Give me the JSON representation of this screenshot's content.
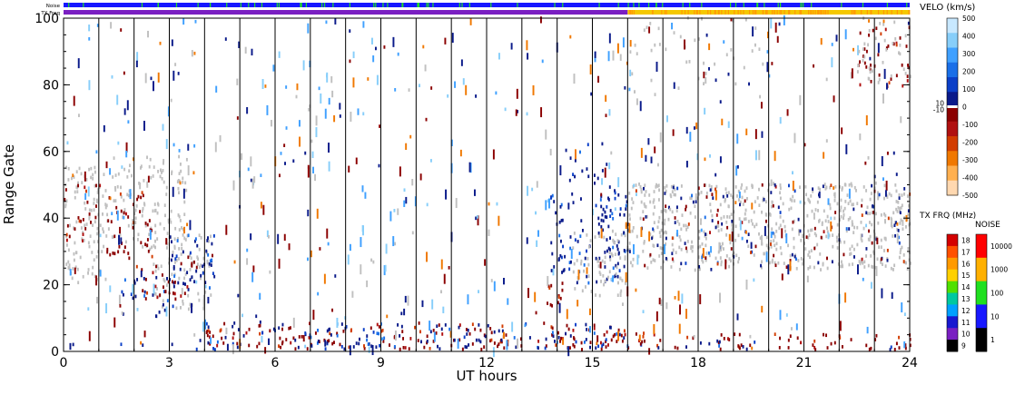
{
  "chart_data": {
    "type": "heatmap",
    "title": "",
    "xlabel": "UT hours",
    "ylabel": "Range Gate",
    "xlim": [
      0,
      24
    ],
    "ylim": [
      0,
      100
    ],
    "x_ticks": [
      "0",
      "3",
      "6",
      "9",
      "12",
      "15",
      "18",
      "21",
      "24"
    ],
    "x_tick_values": [
      0,
      3,
      6,
      9,
      12,
      15,
      18,
      21,
      24
    ],
    "y_ticks": [
      "0",
      "20",
      "40",
      "60",
      "80",
      "100"
    ],
    "y_tick_values": [
      0,
      20,
      40,
      60,
      80,
      100
    ],
    "scan_boundaries_hours": [
      1,
      2,
      3,
      4,
      5,
      6,
      7,
      8,
      9,
      10,
      11,
      12,
      13,
      14,
      15,
      16,
      17,
      18,
      19,
      20,
      21,
      22,
      23
    ],
    "top_strips": {
      "noise_label": "Noise",
      "txfreq_label": "TX Freq",
      "txfreq_change_hour": 16,
      "txfreq_colors": {
        "before": "#7a1fc2",
        "after": "#f5c800"
      }
    },
    "velocity_scale": {
      "label": "VELO (km/s)",
      "tick_labels": [
        "500",
        "400",
        "300",
        "200",
        "100",
        "0",
        "-100",
        "-200",
        "-300",
        "-400",
        "-500"
      ],
      "tick_values": [
        500,
        400,
        300,
        200,
        100,
        0,
        -100,
        -200,
        -300,
        -400,
        -500
      ],
      "side_labels": [
        "10",
        "-10"
      ],
      "side_values": [
        10,
        -10
      ],
      "colors": [
        "#c8e8ff",
        "#87cefa",
        "#3fa0ff",
        "#1a6fe8",
        "#0b3fc8",
        "#0a1a8a",
        "#8b0000",
        "#b01010",
        "#d23c00",
        "#f07800",
        "#ffb050",
        "#ffd8b0"
      ]
    },
    "txfreq_scale": {
      "label": "TX FRQ (MHz)",
      "tick_labels": [
        "18",
        "17",
        "16",
        "15",
        "14",
        "13",
        "12",
        "11",
        "10",
        "9"
      ],
      "tick_values": [
        18,
        17,
        16,
        15,
        14,
        13,
        12,
        11,
        10,
        9
      ],
      "colors": [
        "#d40000",
        "#ff5000",
        "#ff9a00",
        "#ffd000",
        "#50e000",
        "#00c8a0",
        "#00a0ff",
        "#1818d0",
        "#7a1fc2",
        "#000000"
      ]
    },
    "noise_scale": {
      "label": "NOISE",
      "tick_labels": [
        "10000",
        "1000",
        "100",
        "10",
        "1"
      ],
      "tick_values": [
        10000,
        1000,
        100,
        10,
        1
      ],
      "colors": [
        "#ff0000",
        "#ffb000",
        "#20e020",
        "#1818ff",
        "#000000"
      ]
    },
    "colors": {
      "ground_scatter": "#c0c0c0",
      "toward": "#0a1a8a",
      "away": "#8b0000"
    },
    "echo_regions": [
      {
        "start_hour": 0.0,
        "end_hour": 1.2,
        "gate_min": 20,
        "gate_max": 55,
        "kind": "ground",
        "density": 0.6
      },
      {
        "start_hour": 0.0,
        "end_hour": 1.1,
        "gate_min": 30,
        "gate_max": 50,
        "kind": "away",
        "density": 0.25
      },
      {
        "start_hour": 1.2,
        "end_hour": 3.5,
        "gate_min": 30,
        "gate_max": 58,
        "kind": "ground",
        "density": 0.5
      },
      {
        "start_hour": 1.2,
        "end_hour": 2.5,
        "gate_min": 28,
        "gate_max": 48,
        "kind": "away",
        "density": 0.35
      },
      {
        "start_hour": 2.5,
        "end_hour": 4.2,
        "gate_min": 12,
        "gate_max": 35,
        "kind": "ground",
        "density": 0.45
      },
      {
        "start_hour": 3.0,
        "end_hour": 4.3,
        "gate_min": 18,
        "gate_max": 35,
        "kind": "toward",
        "density": 0.5
      },
      {
        "start_hour": 1.6,
        "end_hour": 3.2,
        "gate_min": 10,
        "gate_max": 22,
        "kind": "toward",
        "density": 0.3
      },
      {
        "start_hour": 2.0,
        "end_hour": 3.8,
        "gate_min": 15,
        "gate_max": 28,
        "kind": "away",
        "density": 0.3
      },
      {
        "start_hour": 13.8,
        "end_hour": 16.0,
        "gate_min": 20,
        "gate_max": 48,
        "kind": "toward",
        "density": 0.45
      },
      {
        "start_hour": 14.4,
        "end_hour": 16.0,
        "gate_min": 16,
        "gate_max": 36,
        "kind": "ground",
        "density": 0.5
      },
      {
        "start_hour": 14.2,
        "end_hour": 15.5,
        "gate_min": 45,
        "gate_max": 62,
        "kind": "toward",
        "density": 0.2
      },
      {
        "start_hour": 13.7,
        "end_hour": 14.2,
        "gate_min": 13,
        "gate_max": 20,
        "kind": "away",
        "density": 0.8
      },
      {
        "start_hour": 16.0,
        "end_hour": 24.0,
        "gate_min": 24,
        "gate_max": 50,
        "kind": "ground",
        "density": 0.65
      },
      {
        "start_hour": 16.0,
        "end_hour": 24.0,
        "gate_min": 24,
        "gate_max": 50,
        "kind": "toward",
        "density": 0.1
      },
      {
        "start_hour": 16.0,
        "end_hour": 24.0,
        "gate_min": 24,
        "gate_max": 50,
        "kind": "away",
        "density": 0.07
      },
      {
        "start_hour": 16.0,
        "end_hour": 20.0,
        "gate_min": 75,
        "gate_max": 100,
        "kind": "ground",
        "density": 0.1
      },
      {
        "start_hour": 22.5,
        "end_hour": 24.0,
        "gate_min": 78,
        "gate_max": 98,
        "kind": "away",
        "density": 0.3
      },
      {
        "start_hour": 22.5,
        "end_hour": 24.0,
        "gate_min": 80,
        "gate_max": 100,
        "kind": "ground",
        "density": 0.25
      },
      {
        "start_hour": 4.0,
        "end_hour": 16.0,
        "gate_min": 0,
        "gate_max": 8,
        "kind": "away",
        "density": 0.4
      },
      {
        "start_hour": 4.0,
        "end_hour": 16.0,
        "gate_min": 0,
        "gate_max": 8,
        "kind": "toward",
        "density": 0.3
      },
      {
        "start_hour": 0.0,
        "end_hour": 4.0,
        "gate_min": 0,
        "gate_max": 3,
        "kind": "toward",
        "density": 0.12
      },
      {
        "start_hour": 16.0,
        "end_hour": 24.0,
        "gate_min": 0,
        "gate_max": 5,
        "kind": "away",
        "density": 0.35
      },
      {
        "start_hour": 16.0,
        "end_hour": 24.0,
        "gate_min": 0,
        "gate_max": 3,
        "kind": "toward",
        "density": 0.12
      }
    ]
  }
}
